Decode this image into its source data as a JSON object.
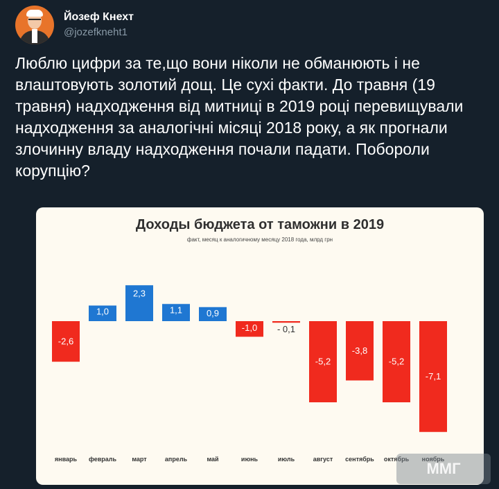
{
  "tweet": {
    "display_name": "Йозеф Кнехт",
    "handle": "@jozefkneht1",
    "text": "Люблю цифри за те,що вони ніколи не обманюють і не влаштовують золотий дощ. Це сухі факти. До травня (19 травня) надходження від митниці в 2019 році перевищували надходження за аналогічні місяці 2018 року, а як прогнали злочинну владу надходження почали падати. Побороли корупцію?"
  },
  "colors": {
    "positive": "#1f77d2",
    "negative": "#f02a1e",
    "background": "#15202b",
    "card": "#fefaf1"
  },
  "icons": {
    "avatar": "avatar-portrait-icon"
  },
  "watermark": "ММГ",
  "chart_data": {
    "type": "bar",
    "title": "Доходы бюджета от таможни в 2019",
    "subtitle": "факт, месяц к аналогичному месяцу 2018 года, млрд грн",
    "categories": [
      "январь",
      "февраль",
      "март",
      "апрель",
      "май",
      "июнь",
      "июль",
      "август",
      "сентябрь",
      "октябрь",
      "ноябрь"
    ],
    "values": [
      -2.6,
      1.0,
      2.3,
      1.1,
      0.9,
      -1.0,
      -0.1,
      -5.2,
      -3.8,
      -5.2,
      -7.1
    ],
    "labels": [
      "-2,6",
      "1,0",
      "2,3",
      "1,1",
      "0,9",
      "-1,0",
      "- 0,1",
      "-5,2",
      "-3,8",
      "-5,2",
      "-7,1"
    ],
    "xlabel": "",
    "ylabel": "",
    "grid": false,
    "legend": "none"
  }
}
